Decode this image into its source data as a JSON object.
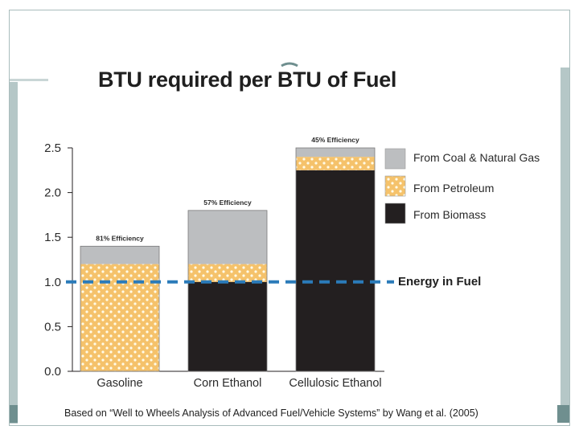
{
  "slide": {
    "frame_color": "#a9bcbc",
    "band_color": "#6f8f8f"
  },
  "chart_data": {
    "type": "bar",
    "stacked": true,
    "title": "BTU required per BTU of Fuel",
    "categories": [
      "Gasoline",
      "Corn Ethanol",
      "Cellulosic Ethanol"
    ],
    "series": [
      {
        "name": "From Biomass",
        "color": "#231f20",
        "values": [
          0,
          1.0,
          2.25
        ]
      },
      {
        "name": "From Petroleum",
        "color": "#f5c26b",
        "dot_color": "#fffbe8",
        "values": [
          1.2,
          0.2,
          0.15
        ]
      },
      {
        "name": "From Coal & Natural Gas",
        "color": "#bcbec0",
        "values": [
          0.2,
          0.6,
          0.1
        ]
      }
    ],
    "efficiency_labels": [
      "81% Efficiency",
      "57% Efficiency",
      "45% Efficiency"
    ],
    "ylim": [
      0,
      2.5
    ],
    "yticks": [
      0.0,
      0.5,
      1.0,
      1.5,
      2.0,
      2.5
    ],
    "ytick_labels": [
      "0.0",
      "0.5",
      "1.0",
      "1.5",
      "2.0",
      "2.5"
    ],
    "reference_line": {
      "label": "Energy in Fuel",
      "value": 1.0,
      "color": "#2b7bb9"
    },
    "legend": [
      "From Coal & Natural Gas",
      "From Petroleum",
      "From Biomass"
    ],
    "legend_position": "top-right",
    "source": "Based on “Well to Wheels Analysis of Advanced Fuel/Vehicle Systems” by Wang et al. (2005)"
  }
}
